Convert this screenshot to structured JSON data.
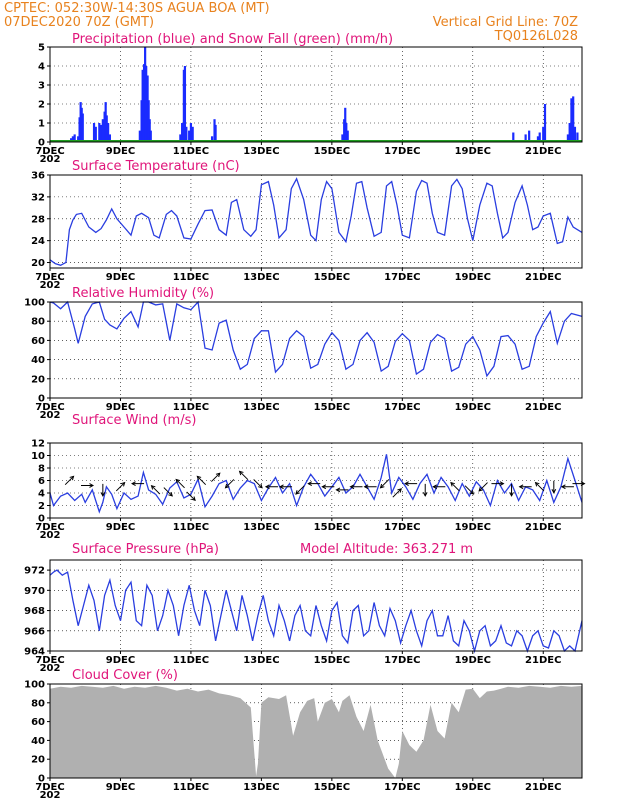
{
  "header": {
    "line1": "CPTEC:   052:30W-14:30S   AGUA BOA (MT)",
    "line2": "07DEC2020 70Z (GMT)",
    "right1": "Vertical Grid Line: 70Z",
    "right2": "TQ0126L028"
  },
  "colors": {
    "precip": "#1a2bff",
    "snow": "#1f9e1f",
    "line": "#2a3ee0",
    "cloud": "#b0b0b0",
    "title": "#e0157a",
    "header": "#e8821e"
  },
  "x_axis": {
    "days": [
      7,
      22.1
    ],
    "labels": [
      {
        "day": 7,
        "text": "7DEC"
      },
      {
        "day": 9,
        "text": "9DEC"
      },
      {
        "day": 11,
        "text": "11DEC"
      },
      {
        "day": 13,
        "text": "13DEC"
      },
      {
        "day": 15,
        "text": "15DEC"
      },
      {
        "day": 17,
        "text": "17DEC"
      },
      {
        "day": 19,
        "text": "19DEC"
      },
      {
        "day": 21,
        "text": "21DEC"
      }
    ],
    "under_label": "202"
  },
  "chart_data": [
    {
      "id": "precip",
      "type": "bar",
      "title": "Precipitation (blue) and Snow Fall (green) (mm/h)",
      "ylim": [
        0,
        5
      ],
      "yticks": [
        0,
        1,
        2,
        3,
        4,
        5
      ],
      "bars": [
        [
          7.6,
          0.2
        ],
        [
          7.65,
          0.3
        ],
        [
          7.7,
          0.4
        ],
        [
          7.8,
          0.3
        ],
        [
          7.84,
          1.3
        ],
        [
          7.87,
          2.1
        ],
        [
          7.9,
          1.8
        ],
        [
          7.93,
          1.5
        ],
        [
          8.25,
          1.0
        ],
        [
          8.3,
          0.8
        ],
        [
          8.4,
          1.0
        ],
        [
          8.45,
          0.9
        ],
        [
          8.5,
          1.2
        ],
        [
          8.55,
          1.6
        ],
        [
          8.58,
          2.1
        ],
        [
          8.61,
          1.4
        ],
        [
          8.65,
          1.0
        ],
        [
          8.7,
          0.4
        ],
        [
          9.55,
          0.6
        ],
        [
          9.6,
          2.2
        ],
        [
          9.63,
          3.8
        ],
        [
          9.67,
          4.1
        ],
        [
          9.7,
          5.0
        ],
        [
          9.73,
          4.0
        ],
        [
          9.77,
          3.5
        ],
        [
          9.8,
          2.2
        ],
        [
          9.83,
          1.2
        ],
        [
          9.86,
          0.6
        ],
        [
          10.7,
          0.4
        ],
        [
          10.75,
          1.0
        ],
        [
          10.8,
          3.8
        ],
        [
          10.83,
          4.0
        ],
        [
          10.87,
          0.8
        ],
        [
          10.95,
          0.6
        ],
        [
          11.0,
          1.0
        ],
        [
          11.05,
          0.8
        ],
        [
          11.6,
          0.3
        ],
        [
          11.67,
          1.2
        ],
        [
          11.7,
          0.9
        ],
        [
          15.3,
          0.4
        ],
        [
          15.35,
          1.2
        ],
        [
          15.38,
          1.8
        ],
        [
          15.41,
          1.0
        ],
        [
          15.45,
          0.6
        ],
        [
          20.15,
          0.5
        ],
        [
          20.5,
          0.4
        ],
        [
          20.6,
          0.6
        ],
        [
          20.85,
          0.3
        ],
        [
          20.9,
          0.5
        ],
        [
          21.0,
          0.8
        ],
        [
          21.05,
          2.0
        ],
        [
          21.7,
          0.4
        ],
        [
          21.75,
          1.0
        ],
        [
          21.8,
          2.3
        ],
        [
          21.85,
          2.4
        ],
        [
          21.9,
          0.8
        ],
        [
          21.97,
          0.5
        ]
      ],
      "snow": 0
    },
    {
      "id": "temp",
      "type": "line",
      "title": "Surface Temperature (nC)",
      "ylim": [
        19,
        36
      ],
      "yticks": [
        20,
        24,
        28,
        32,
        36
      ],
      "x": [
        7.0,
        7.15,
        7.3,
        7.45,
        7.55,
        7.65,
        7.75,
        7.9,
        8.1,
        8.3,
        8.45,
        8.6,
        8.75,
        8.9,
        9.1,
        9.3,
        9.45,
        9.6,
        9.8,
        9.95,
        10.1,
        10.3,
        10.45,
        10.6,
        10.8,
        11.0,
        11.2,
        11.4,
        11.6,
        11.8,
        12.0,
        12.15,
        12.3,
        12.5,
        12.7,
        12.85,
        13.0,
        13.2,
        13.35,
        13.5,
        13.7,
        13.85,
        14.0,
        14.2,
        14.4,
        14.55,
        14.7,
        14.85,
        15.0,
        15.2,
        15.4,
        15.55,
        15.7,
        15.85,
        16.0,
        16.2,
        16.4,
        16.55,
        16.7,
        16.85,
        17.0,
        17.2,
        17.4,
        17.55,
        17.7,
        17.85,
        18.0,
        18.2,
        18.4,
        18.55,
        18.7,
        18.85,
        19.0,
        19.2,
        19.4,
        19.55,
        19.7,
        19.85,
        20.0,
        20.2,
        20.4,
        20.55,
        20.7,
        20.85,
        21.0,
        21.2,
        21.4,
        21.55,
        21.7,
        21.85,
        22.1
      ],
      "values": [
        20.5,
        19.8,
        19.5,
        20.0,
        26.0,
        27.8,
        28.8,
        29.0,
        26.5,
        25.5,
        26.2,
        27.8,
        29.8,
        28.0,
        26.5,
        25.0,
        28.5,
        29.0,
        28.2,
        25.0,
        24.5,
        28.8,
        29.5,
        28.5,
        24.5,
        24.3,
        27.0,
        29.5,
        29.6,
        26.0,
        25.0,
        31.0,
        31.5,
        26.0,
        24.8,
        26.0,
        34.2,
        34.8,
        30.5,
        24.5,
        26.0,
        33.5,
        35.3,
        31.5,
        25.0,
        24.0,
        31.5,
        34.8,
        33.5,
        25.5,
        23.8,
        28.5,
        34.5,
        34.8,
        30.0,
        24.8,
        25.5,
        34.0,
        34.8,
        30.5,
        25.0,
        24.5,
        33.0,
        35.0,
        34.5,
        29.0,
        25.5,
        25.0,
        34.0,
        35.2,
        33.5,
        28.0,
        24.0,
        30.5,
        34.5,
        34.0,
        29.0,
        24.5,
        25.5,
        31.0,
        34.0,
        30.5,
        26.0,
        26.5,
        28.5,
        29.0,
        23.5,
        23.8,
        28.3,
        26.5,
        25.5
      ]
    },
    {
      "id": "rh",
      "type": "line",
      "title": "Relative Humidity (%)",
      "ylim": [
        0,
        100
      ],
      "yticks": [
        0,
        20,
        40,
        60,
        80,
        100
      ],
      "x": [
        7.0,
        7.1,
        7.3,
        7.5,
        7.7,
        7.8,
        8.0,
        8.2,
        8.4,
        8.55,
        8.7,
        8.9,
        9.1,
        9.3,
        9.5,
        9.65,
        9.8,
        10.0,
        10.2,
        10.4,
        10.6,
        10.8,
        11.0,
        11.2,
        11.4,
        11.6,
        11.8,
        12.0,
        12.2,
        12.4,
        12.6,
        12.8,
        13.0,
        13.2,
        13.4,
        13.6,
        13.8,
        14.0,
        14.2,
        14.4,
        14.6,
        14.8,
        15.0,
        15.2,
        15.4,
        15.6,
        15.8,
        16.0,
        16.2,
        16.4,
        16.6,
        16.8,
        17.0,
        17.2,
        17.4,
        17.6,
        17.8,
        18.0,
        18.2,
        18.4,
        18.6,
        18.8,
        19.0,
        19.2,
        19.4,
        19.6,
        19.8,
        20.0,
        20.2,
        20.4,
        20.6,
        20.8,
        21.0,
        21.2,
        21.4,
        21.6,
        21.8,
        22.1
      ],
      "values": [
        100,
        99,
        93,
        100,
        72,
        57,
        85,
        98,
        100,
        82,
        76,
        72,
        83,
        90,
        74,
        100,
        100,
        97,
        98,
        60,
        98,
        94,
        92,
        100,
        52,
        50,
        78,
        81,
        50,
        30,
        35,
        62,
        70,
        70,
        27,
        35,
        62,
        70,
        64,
        31,
        35,
        56,
        68,
        60,
        30,
        35,
        60,
        68,
        58,
        28,
        33,
        59,
        67,
        60,
        25,
        30,
        58,
        66,
        62,
        28,
        32,
        56,
        64,
        50,
        23,
        33,
        64,
        65,
        56,
        30,
        33,
        64,
        78,
        90,
        57,
        80,
        88,
        85
      ]
    },
    {
      "id": "wind",
      "type": "line",
      "title": "Surface Wind (m/s)",
      "ylim": [
        0,
        12
      ],
      "yticks": [
        0,
        2,
        4,
        6,
        8,
        10,
        12
      ],
      "x": [
        7.0,
        7.1,
        7.3,
        7.5,
        7.7,
        7.9,
        8.0,
        8.2,
        8.4,
        8.5,
        8.6,
        8.75,
        8.9,
        9.1,
        9.3,
        9.5,
        9.65,
        9.8,
        10.0,
        10.2,
        10.4,
        10.6,
        10.8,
        11.0,
        11.2,
        11.4,
        11.6,
        11.8,
        12.0,
        12.2,
        12.4,
        12.6,
        12.8,
        13.0,
        13.2,
        13.4,
        13.6,
        13.8,
        14.0,
        14.2,
        14.4,
        14.6,
        14.8,
        15.0,
        15.2,
        15.4,
        15.6,
        15.8,
        16.0,
        16.2,
        16.4,
        16.55,
        16.7,
        16.9,
        17.1,
        17.3,
        17.5,
        17.7,
        17.9,
        18.1,
        18.3,
        18.5,
        18.7,
        18.9,
        19.1,
        19.3,
        19.5,
        19.7,
        19.9,
        20.1,
        20.3,
        20.5,
        20.7,
        20.9,
        21.1,
        21.3,
        21.5,
        21.7,
        21.9,
        22.1
      ],
      "values": [
        4.0,
        2.0,
        3.5,
        4.0,
        2.8,
        3.8,
        2.5,
        4.5,
        1.0,
        2.5,
        5.0,
        3.8,
        1.5,
        4.0,
        3.0,
        3.5,
        7.3,
        4.5,
        3.8,
        2.2,
        4.8,
        5.8,
        3.2,
        3.8,
        6.2,
        1.8,
        3.5,
        5.5,
        6.0,
        3.0,
        4.8,
        6.0,
        5.5,
        2.8,
        4.8,
        6.5,
        4.0,
        5.5,
        2.0,
        5.0,
        7.0,
        5.5,
        3.5,
        5.0,
        6.5,
        4.0,
        5.0,
        7.0,
        5.0,
        3.0,
        6.5,
        10.2,
        4.0,
        6.5,
        5.0,
        3.0,
        5.5,
        7.0,
        4.0,
        6.5,
        5.0,
        2.8,
        5.5,
        3.5,
        5.8,
        4.5,
        2.0,
        6.0,
        4.0,
        5.5,
        2.8,
        5.0,
        4.5,
        2.8,
        6.0,
        2.5,
        5.0,
        9.5,
        6.0,
        2.5
      ]
    },
    {
      "id": "pressure",
      "type": "line",
      "title": "Surface Pressure (hPa)",
      "note": "Model Altitude: 363.271  m",
      "ylim": [
        964,
        973
      ],
      "yticks": [
        964,
        966,
        968,
        970,
        972
      ],
      "x": [
        7.0,
        7.1,
        7.2,
        7.35,
        7.5,
        7.65,
        7.8,
        7.95,
        8.1,
        8.25,
        8.4,
        8.55,
        8.7,
        8.85,
        9.0,
        9.15,
        9.3,
        9.45,
        9.6,
        9.75,
        9.9,
        10.05,
        10.2,
        10.35,
        10.5,
        10.65,
        10.8,
        10.95,
        11.1,
        11.25,
        11.4,
        11.55,
        11.7,
        11.85,
        12.0,
        12.15,
        12.3,
        12.45,
        12.6,
        12.75,
        12.9,
        13.05,
        13.2,
        13.35,
        13.5,
        13.65,
        13.8,
        13.95,
        14.1,
        14.25,
        14.4,
        14.55,
        14.7,
        14.85,
        15.0,
        15.15,
        15.3,
        15.45,
        15.6,
        15.75,
        15.9,
        16.05,
        16.2,
        16.35,
        16.5,
        16.65,
        16.8,
        16.95,
        17.1,
        17.25,
        17.4,
        17.55,
        17.7,
        17.85,
        18.0,
        18.15,
        18.3,
        18.45,
        18.6,
        18.75,
        18.9,
        19.05,
        19.2,
        19.35,
        19.5,
        19.65,
        19.8,
        19.95,
        20.1,
        20.25,
        20.4,
        20.55,
        20.7,
        20.85,
        21.0,
        21.15,
        21.3,
        21.45,
        21.6,
        21.75,
        21.9,
        22.1
      ],
      "values": [
        971.5,
        971.8,
        972.0,
        971.5,
        971.8,
        969.0,
        966.5,
        968.5,
        970.5,
        969.0,
        966.0,
        969.5,
        971.0,
        968.5,
        967.0,
        970.0,
        970.8,
        967.0,
        966.5,
        970.5,
        969.5,
        966.0,
        967.5,
        970.0,
        968.5,
        965.5,
        968.5,
        970.5,
        968.0,
        966.5,
        970.0,
        968.5,
        965.0,
        967.5,
        970.0,
        968.0,
        966.0,
        969.5,
        967.5,
        965.0,
        967.5,
        969.5,
        967.0,
        965.5,
        968.5,
        967.0,
        965.0,
        967.5,
        968.5,
        966.0,
        965.5,
        968.5,
        966.5,
        965.0,
        968.0,
        968.8,
        965.5,
        964.8,
        968.0,
        968.5,
        965.5,
        966.0,
        968.8,
        966.5,
        965.5,
        968.2,
        967.0,
        964.8,
        966.5,
        968.0,
        966.0,
        964.5,
        967.0,
        968.0,
        965.5,
        965.5,
        967.5,
        965.0,
        964.5,
        967.0,
        966.0,
        964.0,
        966.0,
        966.5,
        964.5,
        965.0,
        966.5,
        964.8,
        964.5,
        966.0,
        965.5,
        964.0,
        965.5,
        966.0,
        964.5,
        964.3,
        966.0,
        965.5,
        964.0,
        964.5,
        963.5,
        967.0
      ]
    },
    {
      "id": "cloud",
      "type": "area",
      "title": "Cloud Cover (%)",
      "ylim": [
        0,
        100
      ],
      "yticks": [
        0,
        20,
        40,
        60,
        80,
        100
      ],
      "x": [
        7.0,
        7.3,
        7.6,
        7.9,
        8.2,
        8.5,
        8.8,
        9.1,
        9.4,
        9.7,
        10.0,
        10.3,
        10.6,
        10.9,
        11.2,
        11.5,
        11.8,
        12.1,
        12.4,
        12.7,
        12.85,
        12.9,
        13.0,
        13.2,
        13.5,
        13.7,
        13.9,
        14.1,
        14.3,
        14.5,
        14.6,
        14.8,
        15.0,
        15.2,
        15.3,
        15.5,
        15.7,
        15.9,
        16.1,
        16.3,
        16.5,
        16.6,
        16.7,
        16.8,
        16.9,
        17.0,
        17.2,
        17.4,
        17.6,
        17.8,
        18.0,
        18.2,
        18.4,
        18.6,
        18.8,
        19.0,
        19.2,
        19.4,
        19.6,
        19.8,
        20.0,
        20.3,
        20.6,
        20.9,
        21.2,
        21.5,
        21.8,
        22.1
      ],
      "values": [
        95,
        97,
        96,
        98,
        97,
        96,
        98,
        95,
        97,
        96,
        98,
        96,
        93,
        95,
        92,
        94,
        90,
        88,
        85,
        75,
        2,
        15,
        80,
        86,
        84,
        88,
        45,
        70,
        82,
        85,
        60,
        80,
        84,
        70,
        82,
        88,
        65,
        50,
        78,
        40,
        20,
        10,
        5,
        0,
        15,
        50,
        35,
        28,
        40,
        78,
        50,
        42,
        80,
        70,
        94,
        95,
        85,
        92,
        93,
        95,
        97,
        96,
        98,
        97,
        96,
        98,
        97,
        98
      ]
    }
  ],
  "wind_arrows": [
    {
      "day": 7.55,
      "v": 6.0,
      "dir": "NE"
    },
    {
      "day": 8.05,
      "v": 5.2,
      "dir": "E"
    },
    {
      "day": 8.5,
      "v": 4.5,
      "dir": "S"
    },
    {
      "day": 9.0,
      "v": 5.0,
      "dir": "NE"
    },
    {
      "day": 9.5,
      "v": 5.5,
      "dir": "W"
    },
    {
      "day": 10.0,
      "v": 4.5,
      "dir": "NW"
    },
    {
      "day": 10.35,
      "v": 4.2,
      "dir": "SE"
    },
    {
      "day": 10.7,
      "v": 5.5,
      "dir": "NW"
    },
    {
      "day": 11.0,
      "v": 3.5,
      "dir": "SE"
    },
    {
      "day": 11.3,
      "v": 6.0,
      "dir": "NW"
    },
    {
      "day": 11.7,
      "v": 6.5,
      "dir": "NE"
    },
    {
      "day": 12.1,
      "v": 5.5,
      "dir": "SW"
    },
    {
      "day": 12.5,
      "v": 6.8,
      "dir": "NW"
    },
    {
      "day": 12.9,
      "v": 5.5,
      "dir": "SE"
    },
    {
      "day": 13.3,
      "v": 5.0,
      "dir": "W"
    },
    {
      "day": 13.7,
      "v": 5.0,
      "dir": "W"
    },
    {
      "day": 14.1,
      "v": 4.5,
      "dir": "SW"
    },
    {
      "day": 14.5,
      "v": 5.5,
      "dir": "W"
    },
    {
      "day": 14.9,
      "v": 5.0,
      "dir": "W"
    },
    {
      "day": 15.3,
      "v": 4.5,
      "dir": "W"
    },
    {
      "day": 15.7,
      "v": 5.0,
      "dir": "W"
    },
    {
      "day": 16.1,
      "v": 5.0,
      "dir": "W"
    },
    {
      "day": 16.5,
      "v": 5.5,
      "dir": "SW"
    },
    {
      "day": 16.85,
      "v": 4.0,
      "dir": "NE"
    },
    {
      "day": 17.25,
      "v": 5.5,
      "dir": "W"
    },
    {
      "day": 17.65,
      "v": 4.5,
      "dir": "S"
    },
    {
      "day": 18.05,
      "v": 5.0,
      "dir": "W"
    },
    {
      "day": 18.5,
      "v": 5.0,
      "dir": "NW"
    },
    {
      "day": 18.9,
      "v": 4.5,
      "dir": "SE"
    },
    {
      "day": 19.3,
      "v": 5.0,
      "dir": "SW"
    },
    {
      "day": 19.7,
      "v": 5.5,
      "dir": "E"
    },
    {
      "day": 20.1,
      "v": 4.5,
      "dir": "S"
    },
    {
      "day": 20.5,
      "v": 5.0,
      "dir": "W"
    },
    {
      "day": 20.9,
      "v": 5.0,
      "dir": "NW"
    },
    {
      "day": 21.3,
      "v": 5.0,
      "dir": "S"
    },
    {
      "day": 21.7,
      "v": 5.0,
      "dir": "W"
    },
    {
      "day": 22.0,
      "v": 5.5,
      "dir": "E"
    }
  ]
}
